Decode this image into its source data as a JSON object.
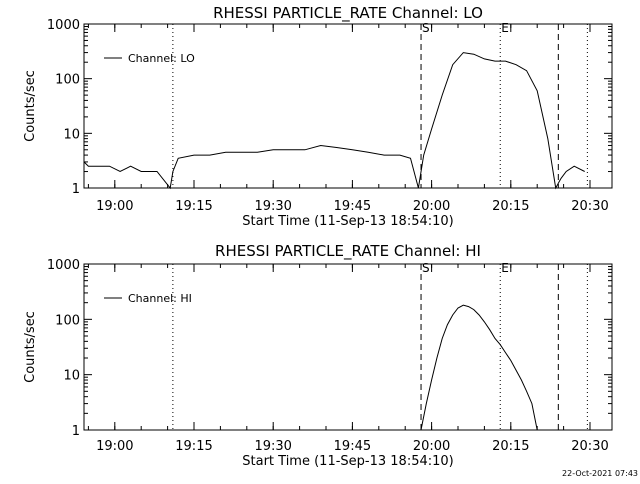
{
  "footer": {
    "timestamp": "22-Oct-2021 07:43"
  },
  "chart_data": [
    {
      "type": "line",
      "title": "RHESSI PARTICLE_RATE Channel: LO",
      "xlabel": "Start Time (11-Sep-13 18:54:10)",
      "ylabel": "Counts/sec",
      "yscale": "log",
      "ylim": [
        1,
        1000
      ],
      "xlim_minutes_after_start": [
        0,
        100
      ],
      "x_tick_labels": [
        "19:00",
        "19:15",
        "19:30",
        "19:45",
        "20:00",
        "20:15",
        "20:30"
      ],
      "y_tick_labels": [
        "1",
        "10",
        "100",
        "1000"
      ],
      "legend": {
        "position": "top-left",
        "entries": [
          "Channel: LO"
        ]
      },
      "markers": {
        "start": "S",
        "end": "E"
      },
      "series": [
        {
          "name": "Channel: LO",
          "color": "#000000",
          "points": [
            [
              "18:54:10",
              3
            ],
            [
              "18:55:00",
              2.5
            ],
            [
              "18:57:00",
              2.5
            ],
            [
              "18:59:00",
              2.5
            ],
            [
              "19:01:00",
              2
            ],
            [
              "19:03:00",
              2.5
            ],
            [
              "19:05:00",
              2
            ],
            [
              "19:08:00",
              2
            ],
            [
              "19:10:30",
              1
            ],
            [
              "19:11:00",
              2
            ],
            [
              "19:12:00",
              3.5
            ],
            [
              "19:15:00",
              4
            ],
            [
              "19:18:00",
              4
            ],
            [
              "19:21:00",
              4.5
            ],
            [
              "19:24:00",
              4.5
            ],
            [
              "19:27:00",
              4.5
            ],
            [
              "19:30:00",
              5
            ],
            [
              "19:33:00",
              5
            ],
            [
              "19:36:00",
              5
            ],
            [
              "19:39:00",
              6
            ],
            [
              "19:42:00",
              5.5
            ],
            [
              "19:45:00",
              5
            ],
            [
              "19:48:00",
              4.5
            ],
            [
              "19:51:00",
              4
            ],
            [
              "19:54:00",
              4
            ],
            [
              "19:56:00",
              3.5
            ],
            [
              "19:57:30",
              1
            ],
            [
              "19:58:30",
              4
            ],
            [
              "20:00:00",
              12
            ],
            [
              "20:02:00",
              50
            ],
            [
              "20:04:00",
              180
            ],
            [
              "20:06:00",
              300
            ],
            [
              "20:08:00",
              280
            ],
            [
              "20:10:00",
              230
            ],
            [
              "20:12:00",
              210
            ],
            [
              "20:14:00",
              210
            ],
            [
              "20:16:00",
              180
            ],
            [
              "20:18:00",
              140
            ],
            [
              "20:20:00",
              60
            ],
            [
              "20:22:00",
              8
            ],
            [
              "20:23:30",
              1
            ],
            [
              "20:24:30",
              1.5
            ],
            [
              "20:25:30",
              2
            ],
            [
              "20:27:00",
              2.5
            ],
            [
              "20:29:00",
              2
            ]
          ]
        }
      ]
    },
    {
      "type": "line",
      "title": "RHESSI PARTICLE_RATE Channel: HI",
      "xlabel": "Start Time (11-Sep-13 18:54:10)",
      "ylabel": "Counts/sec",
      "yscale": "log",
      "ylim": [
        1,
        1000
      ],
      "xlim_minutes_after_start": [
        0,
        100
      ],
      "x_tick_labels": [
        "19:00",
        "19:15",
        "19:30",
        "19:45",
        "20:00",
        "20:15",
        "20:30"
      ],
      "y_tick_labels": [
        "1",
        "10",
        "100",
        "1000"
      ],
      "legend": {
        "position": "top-left",
        "entries": [
          "Channel: HI"
        ]
      },
      "markers": {
        "start": "S",
        "end": "E"
      },
      "series": [
        {
          "name": "Channel: HI",
          "color": "#000000",
          "points": [
            [
              "19:58:00",
              1
            ],
            [
              "19:59:00",
              3
            ],
            [
              "20:00:00",
              8
            ],
            [
              "20:01:00",
              20
            ],
            [
              "20:02:00",
              45
            ],
            [
              "20:03:00",
              80
            ],
            [
              "20:04:00",
              120
            ],
            [
              "20:05:00",
              160
            ],
            [
              "20:06:00",
              180
            ],
            [
              "20:07:00",
              170
            ],
            [
              "20:08:00",
              150
            ],
            [
              "20:09:00",
              120
            ],
            [
              "20:10:00",
              90
            ],
            [
              "20:11:00",
              65
            ],
            [
              "20:12:00",
              45
            ],
            [
              "20:13:00",
              35
            ],
            [
              "20:14:00",
              25
            ],
            [
              "20:15:00",
              18
            ],
            [
              "20:16:00",
              12
            ],
            [
              "20:17:00",
              8
            ],
            [
              "20:18:00",
              5
            ],
            [
              "20:19:00",
              3
            ],
            [
              "20:20:00",
              1
            ]
          ]
        }
      ]
    }
  ]
}
